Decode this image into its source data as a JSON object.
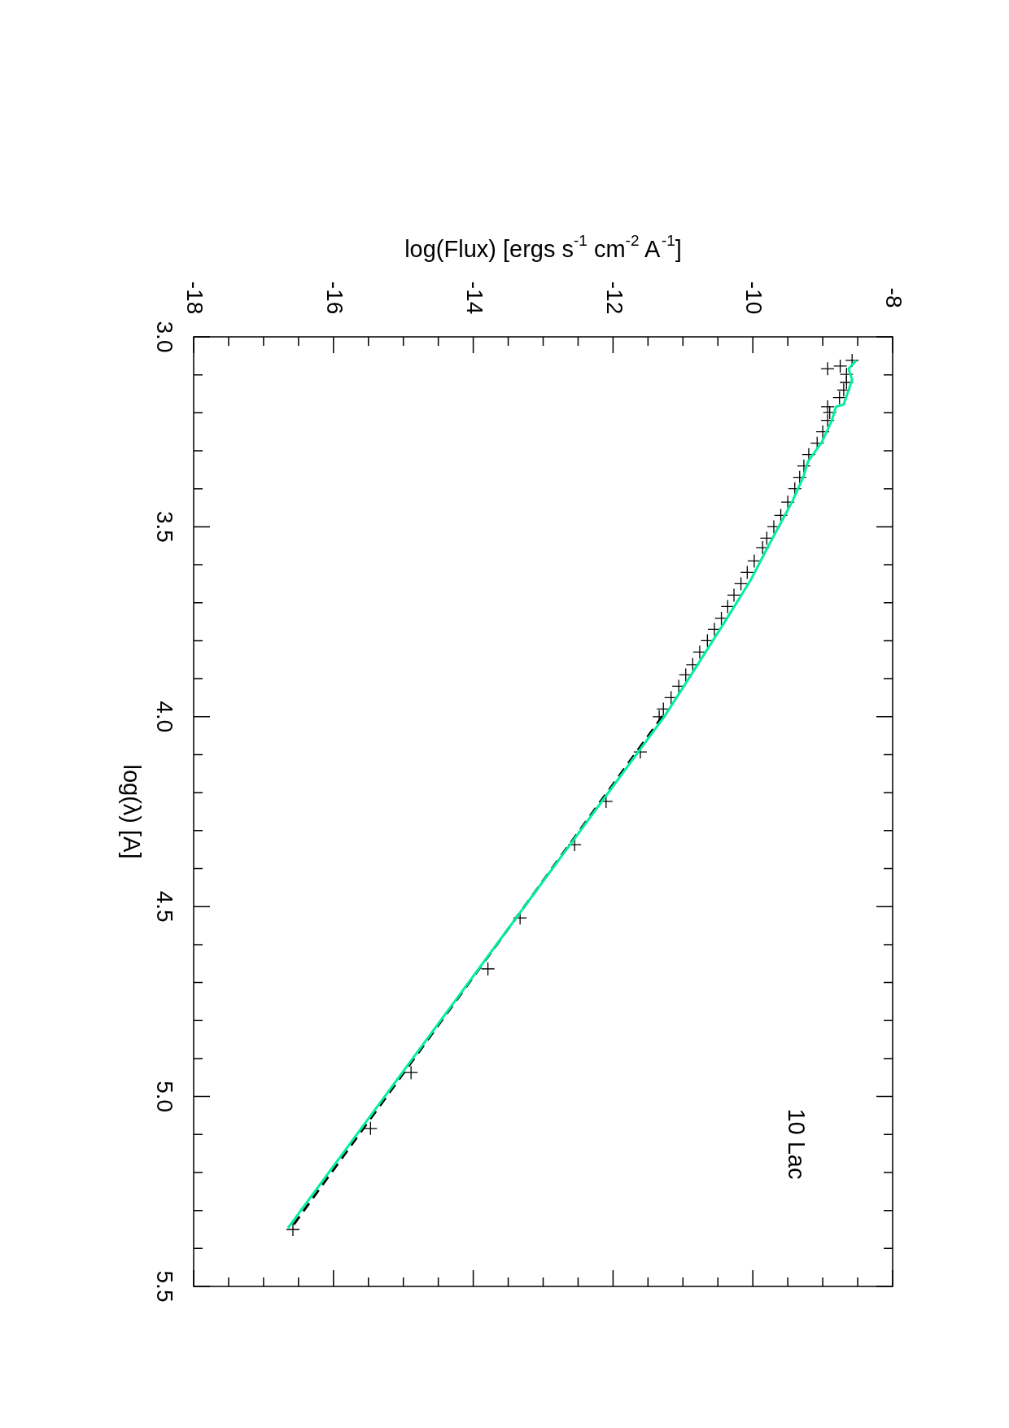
{
  "chart_data": {
    "type": "line",
    "xlabel": "log(Flux) [ergs s$^{-1}$ cm$^{-2}$ A$^{-1}$]",
    "ylabel": "log(λ) [A]",
    "annotations": [
      "10 Lac"
    ],
    "xlim": [
      -18,
      -8
    ],
    "ylim": [
      5.5,
      3.0
    ],
    "yticks": [
      {
        "value": 3.0,
        "label": "3.0"
      },
      {
        "value": 3.1,
        "label": null
      },
      {
        "value": 3.2,
        "label": null
      },
      {
        "value": 3.3,
        "label": null
      },
      {
        "value": 3.4,
        "label": null
      },
      3.5,
      {
        "value": 3.6,
        "label": null
      },
      {
        "value": 3.7,
        "label": null
      },
      {
        "value": 3.8,
        "label": null
      },
      {
        "value": 3.9,
        "label": null
      },
      {
        "value": 4.0,
        "label": "4.0"
      },
      {
        "value": 4.1,
        "label": null
      },
      {
        "value": 4.2,
        "label": null
      },
      {
        "value": 4.3,
        "label": null
      },
      {
        "value": 4.4,
        "label": null
      },
      4.5,
      {
        "value": 4.6,
        "label": null
      },
      {
        "value": 4.7,
        "label": null
      },
      {
        "value": 4.8,
        "label": null
      },
      {
        "value": 4.9,
        "label": null
      },
      {
        "value": 5.0,
        "label": "5.0"
      },
      {
        "value": 5.1,
        "label": null
      },
      {
        "value": 5.2,
        "label": null
      },
      {
        "value": 5.3,
        "label": null
      },
      {
        "value": 5.4,
        "label": null
      },
      5.5
    ],
    "xticks": [
      -18,
      {
        "value": -17.5,
        "label": null
      },
      {
        "value": -17,
        "label": null
      },
      {
        "value": -16.5,
        "label": null
      },
      -16,
      {
        "value": -15.5,
        "label": null
      },
      {
        "value": -15,
        "label": null
      },
      {
        "value": -14.5,
        "label": null
      },
      -14,
      {
        "value": -13.5,
        "label": null
      },
      {
        "value": -13,
        "label": null
      },
      {
        "value": -12.5,
        "label": null
      },
      -12,
      {
        "value": -11.5,
        "label": null
      },
      {
        "value": -11,
        "label": null
      },
      {
        "value": -10.5,
        "label": null
      },
      -10,
      {
        "value": -9.5,
        "label": null
      },
      {
        "value": -9,
        "label": null
      },
      {
        "value": -8.5,
        "label": null
      },
      -8
    ],
    "grid": false,
    "legend": false,
    "series": [
      {
        "type": "scatter",
        "marker": "cross",
        "color": "#000000",
        "values": [
          3.062,
          3.077,
          3.084,
          3.099,
          3.12,
          3.14,
          3.16,
          3.184,
          3.199,
          3.22,
          3.25,
          3.28,
          3.31,
          3.34,
          3.37,
          3.4,
          3.435,
          3.47,
          3.5,
          3.53,
          3.555,
          3.59,
          3.62,
          3.65,
          3.68,
          3.71,
          3.741,
          3.77,
          3.8,
          3.83,
          3.863,
          3.89,
          3.92,
          3.95,
          3.98,
          4.0,
          4.093,
          4.223,
          4.337,
          4.53,
          4.664,
          4.937,
          5.084,
          5.35
        ],
        "x": [
          -8.58,
          -8.75,
          -8.93,
          -8.66,
          -8.66,
          -8.7,
          -8.76,
          -8.93,
          -8.9,
          -8.93,
          -9.0,
          -9.08,
          -9.2,
          -9.27,
          -9.33,
          -9.4,
          -9.5,
          -9.6,
          -9.7,
          -9.8,
          -9.86,
          -9.98,
          -10.08,
          -10.17,
          -10.27,
          -10.36,
          -10.45,
          -10.55,
          -10.65,
          -10.76,
          -10.86,
          -10.96,
          -11.06,
          -11.17,
          -11.28,
          -11.34,
          -11.61,
          -12.1,
          -12.55,
          -13.33,
          -13.79,
          -14.89,
          -15.47,
          -16.58
        ]
      },
      {
        "type": "line",
        "line_style": "dashed",
        "color": "#000000",
        "values": [
          3.998,
          5.35
        ],
        "x": [
          -11.29,
          -16.62
        ]
      },
      {
        "type": "line",
        "line_style": "solid",
        "color": "#00f0a0",
        "values": [
          3.062,
          3.084,
          3.113,
          3.178,
          3.184,
          3.22,
          3.276,
          3.328,
          3.37,
          3.435,
          3.555,
          3.64,
          3.741,
          3.863,
          3.998,
          5.346
        ],
        "x": [
          -8.52,
          -8.63,
          -8.58,
          -8.7,
          -8.81,
          -8.87,
          -9.01,
          -9.21,
          -9.28,
          -9.44,
          -9.79,
          -10.03,
          -10.37,
          -10.79,
          -11.26,
          -16.65
        ]
      }
    ]
  }
}
